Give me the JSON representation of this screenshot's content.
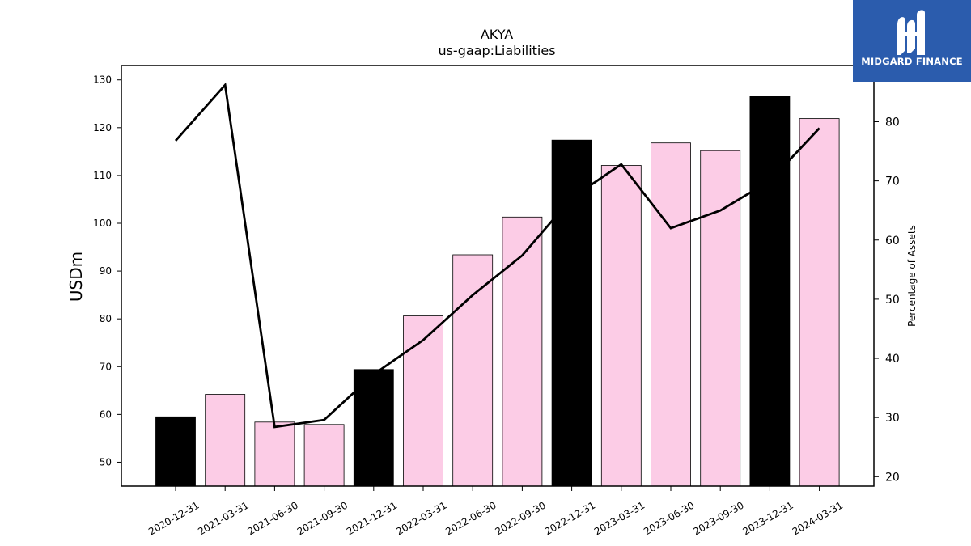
{
  "chart_data": {
    "type": "bar",
    "title": "AKYA",
    "subtitle": "us-gaap:Liabilities",
    "ylabel": "USDm",
    "ylabel_right": "Percentage of Assets",
    "ylim": [
      45,
      133
    ],
    "ylim_right": [
      18.4,
      89.5
    ],
    "yticks": [
      50,
      60,
      70,
      80,
      90,
      100,
      110,
      120,
      130
    ],
    "yticks_right": [
      20,
      30,
      40,
      50,
      60,
      70,
      80
    ],
    "categories": [
      "2020-12-31",
      "2021-03-31",
      "2021-06-30",
      "2021-09-30",
      "2021-12-31",
      "2022-03-31",
      "2022-06-30",
      "2022-09-30",
      "2022-12-31",
      "2023-03-31",
      "2023-06-30",
      "2023-09-30",
      "2023-12-31",
      "2024-03-31"
    ],
    "series": [
      {
        "kind": "bar",
        "values": [
          59.5,
          64.2,
          58.4,
          57.9,
          69.4,
          80.6,
          93.4,
          101.3,
          117.4,
          112.1,
          116.8,
          115.2,
          126.5,
          121.9
        ],
        "colors": [
          "#000000",
          "#fccce6",
          "#fccce6",
          "#fccce6",
          "#000000",
          "#fccce6",
          "#fccce6",
          "#fccce6",
          "#000000",
          "#fccce6",
          "#fccce6",
          "#fccce6",
          "#000000",
          "#fccce6"
        ]
      },
      {
        "kind": "line",
        "axis": "right",
        "color": "#000000",
        "values": [
          76.8,
          86.2,
          28.4,
          29.6,
          37.3,
          43.1,
          50.7,
          57.4,
          67.1,
          72.8,
          62.0,
          65.0,
          70.0,
          78.9
        ]
      }
    ],
    "grid": false,
    "legend": "none"
  },
  "logo": {
    "name": "MIDGARD FINANCE",
    "background": "#2b5cad",
    "text_color": "#ffffff"
  }
}
